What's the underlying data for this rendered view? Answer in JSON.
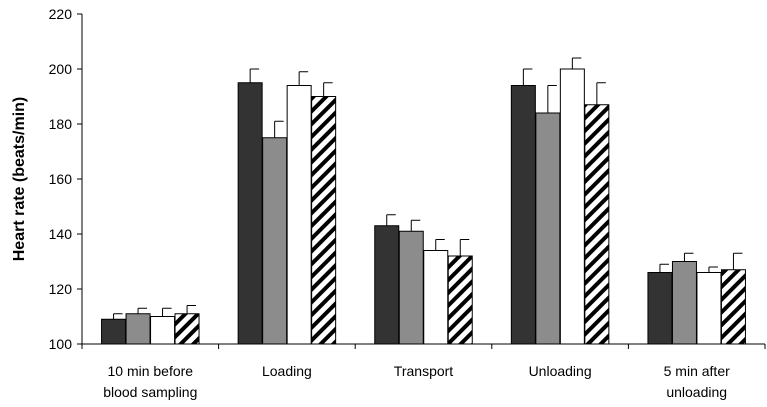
{
  "chart_data": {
    "type": "bar",
    "title": "",
    "xlabel": "",
    "ylabel": "Heart rate (beats/min)",
    "ylim": [
      100,
      220
    ],
    "yticks": [
      100,
      120,
      140,
      160,
      180,
      200,
      220
    ],
    "grid": false,
    "legend": "none",
    "categories": [
      [
        "10 min before",
        "blood sampling"
      ],
      [
        "Loading"
      ],
      [
        "Transport"
      ],
      [
        "Unloading"
      ],
      [
        "5 min after",
        "unloading"
      ]
    ],
    "series": [
      {
        "fill": "#333333",
        "pattern": "solid",
        "values": [
          109,
          195,
          143,
          194,
          126
        ],
        "errors": [
          2,
          5,
          4,
          6,
          3
        ]
      },
      {
        "fill": "#8c8c8c",
        "pattern": "solid",
        "values": [
          111,
          175,
          141,
          184,
          130
        ],
        "errors": [
          2,
          6,
          4,
          10,
          3
        ]
      },
      {
        "fill": "#ffffff",
        "pattern": "solid",
        "values": [
          110,
          194,
          134,
          200,
          126
        ],
        "errors": [
          3,
          5,
          4,
          4,
          2
        ]
      },
      {
        "fill": "#ffffff",
        "pattern": "diagonal-hatch",
        "values": [
          111,
          190,
          132,
          187,
          127
        ],
        "errors": [
          3,
          5,
          6,
          8,
          6
        ]
      }
    ]
  }
}
